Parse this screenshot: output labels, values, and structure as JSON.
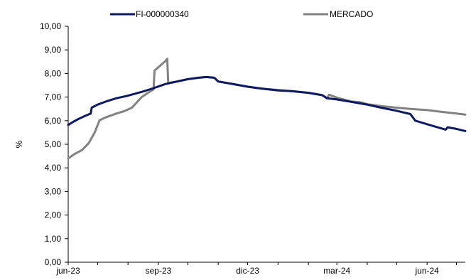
{
  "chart_data": {
    "type": "line",
    "title": "",
    "xlabel": "",
    "ylabel": "%",
    "ylim": [
      0,
      10
    ],
    "y_ticks": [
      "0,00",
      "1,00",
      "2,00",
      "3,00",
      "4,00",
      "5,00",
      "6,00",
      "7,00",
      "8,00",
      "9,00",
      "10,00"
    ],
    "y_tick_values": [
      0,
      1,
      2,
      3,
      4,
      5,
      6,
      7,
      8,
      9,
      10
    ],
    "x_ticks": [
      "jun-23",
      "sep-23",
      "dic-23",
      "mar-24",
      "jun-24"
    ],
    "x_tick_dates": [
      "2023-06-01",
      "2023-09-01",
      "2023-12-01",
      "2024-03-01",
      "2024-06-01"
    ],
    "xlim": [
      "2023-06-01",
      "2024-07-10"
    ],
    "grid": false,
    "legend_position": "top",
    "series": [
      {
        "name": "FI-000000340",
        "color": "#0e1a5e",
        "points": [
          [
            "2023-06-01",
            5.82
          ],
          [
            "2023-06-06",
            5.95
          ],
          [
            "2023-06-12",
            6.08
          ],
          [
            "2023-06-18",
            6.2
          ],
          [
            "2023-06-24",
            6.3
          ],
          [
            "2023-06-25",
            6.55
          ],
          [
            "2023-07-01",
            6.68
          ],
          [
            "2023-07-10",
            6.82
          ],
          [
            "2023-07-20",
            6.95
          ],
          [
            "2023-08-01",
            7.06
          ],
          [
            "2023-08-15",
            7.22
          ],
          [
            "2023-08-25",
            7.35
          ],
          [
            "2023-09-01",
            7.45
          ],
          [
            "2023-09-08",
            7.55
          ],
          [
            "2023-09-20",
            7.66
          ],
          [
            "2023-10-01",
            7.76
          ],
          [
            "2023-10-12",
            7.82
          ],
          [
            "2023-10-20",
            7.85
          ],
          [
            "2023-10-28",
            7.82
          ],
          [
            "2023-11-01",
            7.66
          ],
          [
            "2023-11-15",
            7.56
          ],
          [
            "2023-12-01",
            7.44
          ],
          [
            "2023-12-15",
            7.36
          ],
          [
            "2024-01-01",
            7.28
          ],
          [
            "2024-01-15",
            7.25
          ],
          [
            "2024-02-01",
            7.18
          ],
          [
            "2024-02-15",
            7.08
          ],
          [
            "2024-02-20",
            6.95
          ],
          [
            "2024-03-01",
            6.9
          ],
          [
            "2024-03-15",
            6.8
          ],
          [
            "2024-04-01",
            6.68
          ],
          [
            "2024-04-15",
            6.55
          ],
          [
            "2024-05-01",
            6.42
          ],
          [
            "2024-05-15",
            6.28
          ],
          [
            "2024-05-20",
            6.0
          ],
          [
            "2024-06-01",
            5.85
          ],
          [
            "2024-06-15",
            5.68
          ],
          [
            "2024-06-20",
            5.62
          ],
          [
            "2024-06-22",
            5.72
          ],
          [
            "2024-07-01",
            5.65
          ],
          [
            "2024-07-10",
            5.56
          ]
        ]
      },
      {
        "name": "MERCADO",
        "color": "#828282",
        "points": [
          [
            "2023-06-01",
            4.4
          ],
          [
            "2023-06-08",
            4.6
          ],
          [
            "2023-06-15",
            4.75
          ],
          [
            "2023-06-22",
            5.05
          ],
          [
            "2023-06-28",
            5.5
          ],
          [
            "2023-07-03",
            6.02
          ],
          [
            "2023-07-10",
            6.15
          ],
          [
            "2023-07-20",
            6.3
          ],
          [
            "2023-07-28",
            6.4
          ],
          [
            "2023-08-05",
            6.55
          ],
          [
            "2023-08-15",
            7.0
          ],
          [
            "2023-08-22",
            7.2
          ],
          [
            "2023-08-27",
            7.32
          ],
          [
            "2023-08-28",
            8.12
          ],
          [
            "2023-09-02",
            8.3
          ],
          [
            "2023-09-08",
            8.52
          ],
          [
            "2023-09-10",
            8.62
          ],
          [
            "2023-09-11",
            7.6
          ],
          [
            "2023-09-20",
            7.66
          ],
          [
            "2023-10-01",
            7.76
          ],
          [
            "2023-10-12",
            7.82
          ],
          [
            "2023-10-20",
            7.85
          ],
          [
            "2023-10-28",
            7.82
          ],
          [
            "2023-11-01",
            7.66
          ],
          [
            "2023-11-15",
            7.56
          ],
          [
            "2023-12-01",
            7.44
          ],
          [
            "2023-12-15",
            7.36
          ],
          [
            "2024-01-01",
            7.3
          ],
          [
            "2024-01-15",
            7.25
          ],
          [
            "2024-02-01",
            7.18
          ],
          [
            "2024-02-15",
            7.08
          ],
          [
            "2024-02-20",
            6.95
          ],
          [
            "2024-02-22",
            7.1
          ],
          [
            "2024-03-01",
            6.98
          ],
          [
            "2024-03-15",
            6.82
          ],
          [
            "2024-03-25",
            6.78
          ],
          [
            "2024-04-01",
            6.7
          ],
          [
            "2024-04-15",
            6.62
          ],
          [
            "2024-05-01",
            6.55
          ],
          [
            "2024-05-15",
            6.5
          ],
          [
            "2024-06-01",
            6.45
          ],
          [
            "2024-06-15",
            6.38
          ],
          [
            "2024-07-01",
            6.3
          ],
          [
            "2024-07-10",
            6.26
          ]
        ]
      }
    ]
  }
}
